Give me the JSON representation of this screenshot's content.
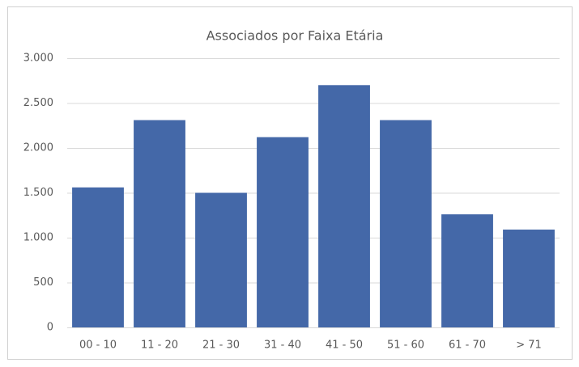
{
  "chart_data": {
    "type": "bar",
    "title": "Associados por Faixa Etária",
    "categories": [
      "00 - 10",
      "11 - 20",
      "21 - 30",
      "31 - 40",
      "41 - 50",
      "51 - 60",
      "61 - 70",
      "> 71"
    ],
    "values": [
      1560,
      2310,
      1500,
      2120,
      2700,
      2310,
      1260,
      1090
    ],
    "color": "#4468a8",
    "ylim": [
      0,
      3000
    ],
    "yticks": [
      0,
      500,
      {
        "value": 1000,
        "label": "1.000"
      },
      {
        "value": 1500,
        "label": "1.500"
      },
      {
        "value": 2000,
        "label": "2.000"
      },
      {
        "value": 2500,
        "label": "2.500"
      },
      {
        "value": 3000,
        "label": "3.000"
      }
    ],
    "grid": true
  }
}
